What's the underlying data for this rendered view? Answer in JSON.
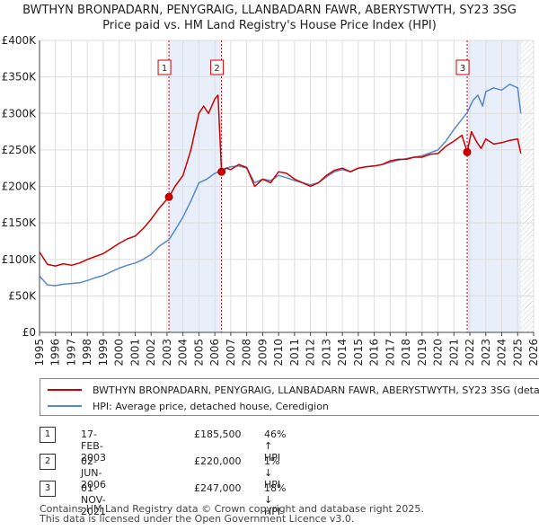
{
  "title_line1": "BWTHYN BRONPADARN, PENYGRAIG, LLANBADARN FAWR, ABERYSTWYTH, SY23 3SG",
  "title_line2": "Price paid vs. HM Land Registry's House Price Index (HPI)",
  "colors": {
    "price": "#cc0000",
    "hpi": "#5588cc",
    "shade": "#e8eefa",
    "grid": "#dddddd",
    "vline": "#cc0000"
  },
  "legend": {
    "price_label": "BWTHYN BRONPADARN, PENYGRAIG, LLANBADARN FAWR, ABERYSTWYTH, SY23 3SG (detached house)",
    "hpi_label": "HPI: Average price, detached house, Ceredigion"
  },
  "sales": [
    {
      "id": "1",
      "date": "17-FEB-2003",
      "price": "£185,500",
      "hpi": "46% ↑ HPI"
    },
    {
      "id": "2",
      "date": "02-JUN-2006",
      "price": "£220,000",
      "hpi": "1% ↓ HPI"
    },
    {
      "id": "3",
      "date": "01-NOV-2021",
      "price": "£247,000",
      "hpi": "18% ↓ HPI"
    }
  ],
  "footer_line1": "Contains HM Land Registry data © Crown copyright and database right 2025.",
  "footer_line2": "This data is licensed under the Open Government Licence v3.0.",
  "chart_data": {
    "type": "line",
    "title": "BWTHYN BRONPADARN, PENYGRAIG, LLANBADARN FAWR, ABERYSTWYTH, SY23 3SG",
    "subtitle": "Price paid vs. HM Land Registry's House Price Index (HPI)",
    "xlim": [
      1995,
      2026
    ],
    "ylim": [
      0,
      400000
    ],
    "x_ticks": [
      1995,
      1996,
      1997,
      1998,
      1999,
      2000,
      2001,
      2002,
      2003,
      2004,
      2005,
      2006,
      2007,
      2008,
      2009,
      2010,
      2011,
      2012,
      2013,
      2014,
      2015,
      2016,
      2017,
      2018,
      2019,
      2020,
      2021,
      2022,
      2023,
      2024,
      2025,
      2026
    ],
    "y_ticks": [
      {
        "value": 0,
        "label": "£0"
      },
      {
        "value": 50000,
        "label": "£50K"
      },
      {
        "value": 100000,
        "label": "£100K"
      },
      {
        "value": 150000,
        "label": "£150K"
      },
      {
        "value": 200000,
        "label": "£200K"
      },
      {
        "value": 250000,
        "label": "£250K"
      },
      {
        "value": 300000,
        "label": "£300K"
      },
      {
        "value": 350000,
        "label": "£350K"
      },
      {
        "value": 400000,
        "label": "£400K"
      }
    ],
    "grid": true,
    "data_end": 2025.2,
    "sale_markers": [
      {
        "label": "1",
        "x": 2003.12,
        "y": 185500
      },
      {
        "label": "2",
        "x": 2006.42,
        "y": 220000
      },
      {
        "label": "3",
        "x": 2021.83,
        "y": 247000
      }
    ],
    "shaded_spans": [
      [
        2003.12,
        2006.42
      ],
      [
        2021.83,
        2025.2
      ]
    ],
    "series": [
      {
        "name": "BWTHYN BRONPADARN, PENYGRAIG, LLANBADARN FAWR, ABERYSTWYTH, SY23 3SG (detached house)",
        "x": [
          1995,
          1995.5,
          1996,
          1996.5,
          1997,
          1997.5,
          1998,
          1998.5,
          1999,
          1999.5,
          2000,
          2000.5,
          2001,
          2001.5,
          2002,
          2002.5,
          2003.12,
          2003.5,
          2004,
          2004.5,
          2005,
          2005.3,
          2005.6,
          2006,
          2006.2,
          2006.42,
          2006.7,
          2007,
          2007.5,
          2008,
          2008.5,
          2009,
          2009.5,
          2010,
          2010.5,
          2011,
          2011.5,
          2012,
          2012.5,
          2013,
          2013.5,
          2014,
          2014.5,
          2015,
          2015.5,
          2016,
          2016.5,
          2017,
          2017.5,
          2018,
          2018.5,
          2019,
          2019.5,
          2020,
          2020.5,
          2021,
          2021.5,
          2021.83,
          2022.1,
          2022.4,
          2022.7,
          2023,
          2023.5,
          2024,
          2024.5,
          2025,
          2025.2
        ],
        "values": [
          110000,
          93000,
          91000,
          94000,
          92000,
          95000,
          100000,
          104000,
          108000,
          115000,
          122000,
          128000,
          132000,
          142000,
          155000,
          170000,
          185500,
          200000,
          215000,
          250000,
          300000,
          310000,
          300000,
          320000,
          325000,
          220000,
          225000,
          223000,
          230000,
          226000,
          200000,
          210000,
          205000,
          220000,
          218000,
          210000,
          205000,
          200000,
          205000,
          215000,
          222000,
          225000,
          220000,
          225000,
          227000,
          228000,
          230000,
          235000,
          237000,
          237000,
          240000,
          240000,
          244000,
          245000,
          255000,
          262000,
          270000,
          247000,
          275000,
          262000,
          252000,
          265000,
          258000,
          260000,
          263000,
          265000,
          245000
        ]
      },
      {
        "name": "HPI: Average price, detached house, Ceredigion",
        "x": [
          1995,
          1995.5,
          1996,
          1996.5,
          1997,
          1997.5,
          1998,
          1998.5,
          1999,
          1999.5,
          2000,
          2000.5,
          2001,
          2001.5,
          2002,
          2002.5,
          2003.12,
          2003.5,
          2004,
          2004.5,
          2005,
          2005.5,
          2006,
          2006.42,
          2006.7,
          2007,
          2007.5,
          2008,
          2008.5,
          2009,
          2009.5,
          2010,
          2010.5,
          2011,
          2011.5,
          2012,
          2012.5,
          2013,
          2013.5,
          2014,
          2014.5,
          2015,
          2015.5,
          2016,
          2016.5,
          2017,
          2017.5,
          2018,
          2018.5,
          2019,
          2019.5,
          2020,
          2020.5,
          2021,
          2021.5,
          2021.83,
          2022.2,
          2022.5,
          2022.8,
          2023,
          2023.5,
          2024,
          2024.5,
          2025,
          2025.2
        ],
        "values": [
          77000,
          65000,
          64000,
          66000,
          67000,
          68000,
          71000,
          75000,
          78000,
          83000,
          88000,
          92000,
          95000,
          100000,
          107000,
          118000,
          127000,
          140000,
          158000,
          180000,
          205000,
          210000,
          218000,
          222000,
          225000,
          227000,
          228000,
          225000,
          205000,
          210000,
          208000,
          215000,
          212000,
          208000,
          205000,
          202000,
          205000,
          213000,
          220000,
          223000,
          220000,
          225000,
          227000,
          228000,
          230000,
          233000,
          236000,
          238000,
          240000,
          242000,
          246000,
          250000,
          262000,
          278000,
          292000,
          301000,
          318000,
          325000,
          310000,
          330000,
          335000,
          332000,
          340000,
          335000,
          300000
        ]
      }
    ]
  }
}
